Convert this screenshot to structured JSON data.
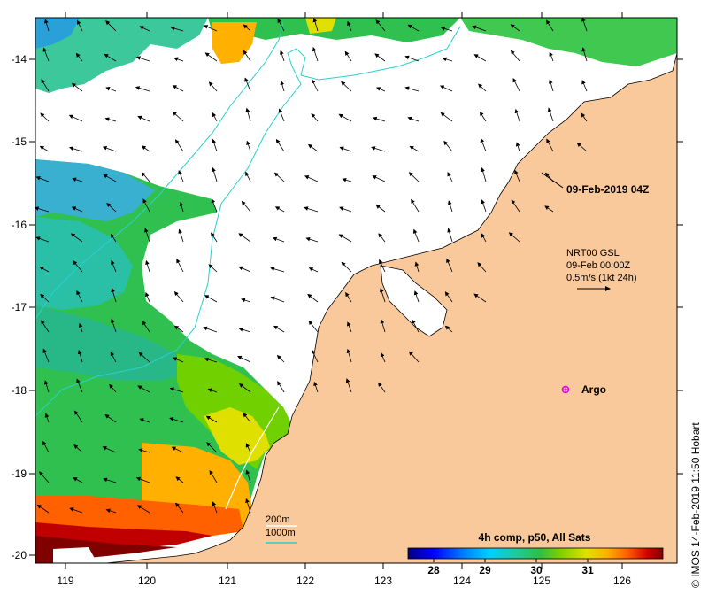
{
  "map": {
    "lon_ticks": [
      "119",
      "120",
      "121",
      "122",
      "123",
      "124",
      "125",
      "126"
    ],
    "lat_ticks": [
      "-14",
      "-15",
      "-16",
      "-17",
      "-18",
      "-19",
      "-20"
    ]
  },
  "annotations": {
    "timestamp": "09-Feb-2019 04Z",
    "current_source": "NRT00 GSL",
    "current_time": "09-Feb 00:00Z",
    "current_scale": "0.5m/s (1kt 24h)",
    "argo": "Argo"
  },
  "colorbar": {
    "title": "4h comp, p50, All Sats",
    "ticks": [
      "28",
      "29",
      "30",
      "31"
    ],
    "colors": [
      "#00007f",
      "#0000ff",
      "#0080ff",
      "#00d0ff",
      "#20c8a0",
      "#30c040",
      "#80d000",
      "#e0e000",
      "#ffb000",
      "#ff6000",
      "#d00000",
      "#800000"
    ]
  },
  "legend": {
    "contour_200": "200m",
    "contour_1000": "1000m"
  },
  "credit": "© IMOS 14-Feb-2019 11:50 Hobart",
  "colors": {
    "land": "#f9c89b",
    "contour_200": "#ffffff",
    "contour_1000": "#2ad0d0",
    "argo": "#e000e0"
  }
}
